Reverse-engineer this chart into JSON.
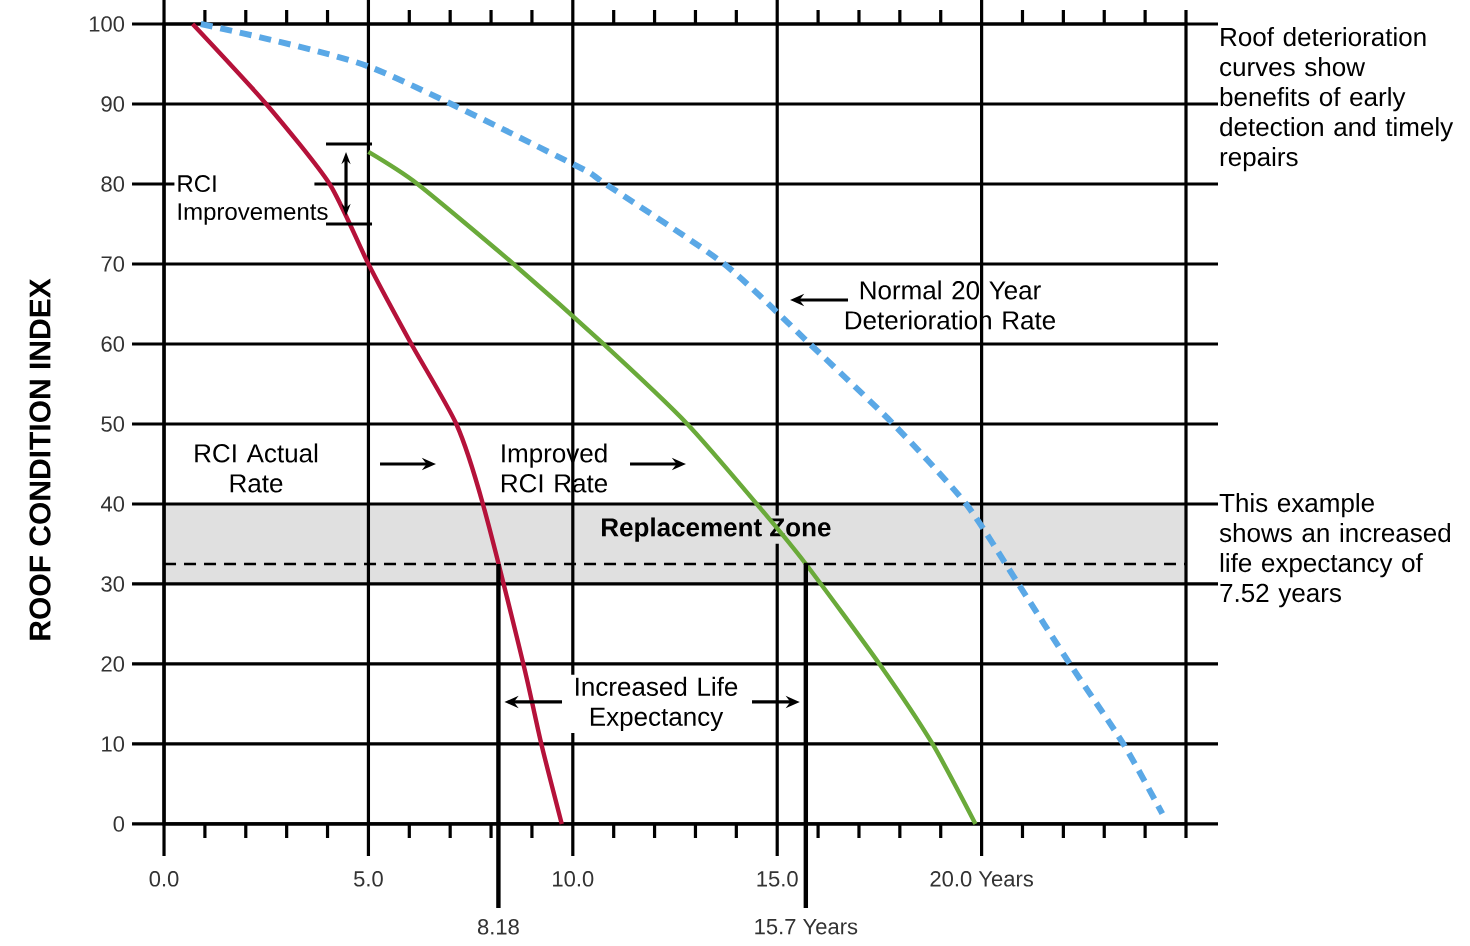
{
  "chart_data": {
    "type": "line",
    "ylabel": "ROOF CONDITION INDEX",
    "xlim": [
      0,
      25
    ],
    "ylim": [
      0,
      100
    ],
    "xticks": [
      {
        "value": 0,
        "label": "0.0"
      },
      {
        "value": 1,
        "label": null
      },
      {
        "value": 2,
        "label": null
      },
      {
        "value": 3,
        "label": null
      },
      {
        "value": 4,
        "label": null
      },
      {
        "value": 5,
        "label": "5.0"
      },
      {
        "value": 6,
        "label": null
      },
      {
        "value": 7,
        "label": null
      },
      {
        "value": 8,
        "label": null
      },
      {
        "value": 9,
        "label": null
      },
      {
        "value": 10,
        "label": "10.0"
      },
      {
        "value": 11,
        "label": null
      },
      {
        "value": 12,
        "label": null
      },
      {
        "value": 13,
        "label": null
      },
      {
        "value": 14,
        "label": null
      },
      {
        "value": 15,
        "label": "15.0"
      },
      {
        "value": 16,
        "label": null
      },
      {
        "value": 17,
        "label": null
      },
      {
        "value": 18,
        "label": null
      },
      {
        "value": 19,
        "label": null
      },
      {
        "value": 20,
        "label": "20.0 Years"
      },
      {
        "value": 21,
        "label": null
      },
      {
        "value": 22,
        "label": null
      },
      {
        "value": 23,
        "label": null
      },
      {
        "value": 24,
        "label": null
      },
      {
        "value": 25,
        "label": null
      }
    ],
    "yticks": [
      0,
      10,
      20,
      30,
      40,
      50,
      60,
      70,
      80,
      90,
      100
    ],
    "grid": true,
    "series": [
      {
        "color": "#b5123a",
        "line_style": "solid",
        "x": [
          0.7,
          2.5,
          4.05,
          5.0,
          6.05,
          7.15,
          7.8,
          8.79,
          9.23,
          9.73
        ],
        "values": [
          100,
          90,
          80,
          70,
          60,
          50,
          40,
          20,
          10,
          0
        ]
      },
      {
        "color": "#6aaa3a",
        "line_style": "solid",
        "x": [
          5.0,
          6.2,
          8.55,
          10.75,
          12.8,
          14.5,
          15.7,
          17.5,
          18.8,
          19.85
        ],
        "values": [
          84,
          80,
          70,
          60,
          50,
          40,
          32.5,
          20,
          10,
          0
        ]
      },
      {
        "color": "#5aa8e6",
        "line_style": "dashed",
        "x": [
          0.9,
          5.0,
          10.0,
          10.8,
          13.7,
          15.8,
          17.84,
          19.62,
          20.9,
          22.16,
          23.47,
          24.42
        ],
        "values": [
          100,
          94.7,
          82.5,
          80,
          70,
          60,
          50,
          40,
          30,
          20,
          10,
          1.3
        ]
      }
    ],
    "bands": [
      {
        "axis": "y",
        "from": 30,
        "to": 40,
        "label": "Replacement Zone",
        "color": "#e0e0e0"
      }
    ],
    "ref_lines": [
      {
        "axis": "y",
        "value": 32.5,
        "label": null,
        "line_style": "dashed"
      },
      {
        "axis": "x",
        "value": 8.18,
        "label": "8.18"
      },
      {
        "axis": "x",
        "value": 15.7,
        "label": "15.7 Years"
      }
    ],
    "annotations": [
      "RCI Improvements",
      "RCI Actual Rate",
      "Improved RCI Rate",
      "Normal 20 Year Deterioration Rate",
      "Increased Life Expectancy",
      "Roof deterioration curves show benefits of early detection and timely repairs",
      "This example shows an increased life expectancy of 7.52 years"
    ]
  }
}
